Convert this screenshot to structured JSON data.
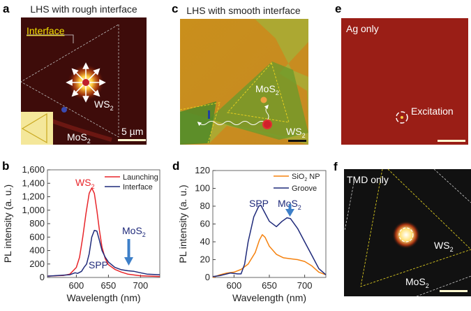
{
  "panels": {
    "a": {
      "label": "a",
      "title": "LHS with rough interface",
      "interface_label": "Interface",
      "ws2": "WS",
      "ws2_sub": "2",
      "mos2": "MoS",
      "mos2_sub": "2",
      "scalebar": "5 µm"
    },
    "c": {
      "label": "c",
      "title": "LHS with smooth interface",
      "mos2": "MoS",
      "mos2_sub": "2",
      "ws2": "WS",
      "ws2_sub": "2"
    },
    "e": {
      "label": "e",
      "title": "Ag only",
      "excitation": "Excitation"
    },
    "f": {
      "label": "f",
      "title": "TMD only",
      "ws2": "WS",
      "ws2_sub": "2",
      "mos2": "MoS",
      "mos2_sub": "2"
    },
    "b": {
      "label": "b",
      "ann_ws2": "WS",
      "ann_ws2_sub": "2",
      "ann_spp": "SPP",
      "ann_mos2": "MoS",
      "ann_mos2_sub": "2"
    },
    "d": {
      "label": "d",
      "ann_spp": "SPP",
      "ann_mos2": "MoS",
      "ann_mos2_sub": "2",
      "legend_sio2": "SiO",
      "legend_sio2_sub": "2",
      "legend_sio2_rest": " NP"
    }
  },
  "colors": {
    "red": "#e8252a",
    "navy": "#1f2a7a",
    "orange": "#f5820f",
    "arrow": "#3d7fc8"
  },
  "chart_data": [
    {
      "type": "line",
      "panel": "b",
      "xlabel": "Wavelength (nm)",
      "ylabel": "PL intensity (a. u.)",
      "xlim": [
        555,
        730
      ],
      "ylim": [
        0,
        1600
      ],
      "xticks": [
        600,
        650,
        700
      ],
      "yticks": [
        0,
        200,
        400,
        600,
        800,
        1000,
        1200,
        1400,
        1600
      ],
      "ytick_labels": [
        "0",
        "200",
        "400",
        "600",
        "800",
        "1,000",
        "1,200",
        "1,400",
        "1,600"
      ],
      "legend": "top-right",
      "series": [
        {
          "name": "Launching",
          "color": "#e8252a",
          "x": [
            555,
            580,
            590,
            600,
            605,
            610,
            615,
            620,
            624,
            628,
            632,
            636,
            640,
            645,
            650,
            660,
            670,
            680,
            700,
            730
          ],
          "y": [
            20,
            30,
            50,
            150,
            300,
            600,
            950,
            1250,
            1330,
            1250,
            1000,
            700,
            450,
            280,
            190,
            120,
            80,
            50,
            25,
            15
          ]
        },
        {
          "name": "Interface",
          "color": "#1f2a7a",
          "x": [
            555,
            590,
            598,
            602,
            608,
            612,
            616,
            620,
            624,
            628,
            632,
            636,
            640,
            645,
            650,
            660,
            670,
            680,
            690,
            700,
            710,
            730
          ],
          "y": [
            20,
            40,
            70,
            60,
            90,
            150,
            200,
            350,
            600,
            700,
            690,
            550,
            400,
            300,
            230,
            150,
            115,
            100,
            90,
            70,
            50,
            40
          ]
        }
      ]
    },
    {
      "type": "line",
      "panel": "d",
      "xlabel": "Wavelength (nm)",
      "ylabel": "PL intensity (a. u.)",
      "xlim": [
        570,
        730
      ],
      "ylim": [
        0,
        120
      ],
      "xticks": [
        600,
        650,
        700
      ],
      "yticks": [
        0,
        20,
        40,
        60,
        80,
        100,
        120
      ],
      "ytick_labels": [
        "0",
        "20",
        "40",
        "60",
        "80",
        "100",
        "120"
      ],
      "legend": "top-right",
      "series": [
        {
          "name": "SiO2 NP",
          "color": "#f5820f",
          "x": [
            570,
            580,
            590,
            600,
            610,
            620,
            630,
            636,
            640,
            644,
            650,
            660,
            670,
            680,
            690,
            700,
            710,
            720,
            730
          ],
          "y": [
            0,
            3,
            5,
            6,
            9,
            15,
            28,
            42,
            48,
            45,
            35,
            26,
            22,
            21,
            20,
            18,
            13,
            6,
            3
          ]
        },
        {
          "name": "Groove",
          "color": "#1f2a7a",
          "x": [
            570,
            580,
            595,
            605,
            610,
            615,
            620,
            628,
            635,
            638,
            642,
            650,
            660,
            668,
            675,
            680,
            690,
            700,
            710,
            720,
            730
          ],
          "y": [
            1,
            2,
            5,
            4,
            4,
            15,
            40,
            68,
            80,
            81,
            75,
            63,
            57,
            63,
            67,
            66,
            55,
            40,
            25,
            10,
            3
          ]
        }
      ]
    }
  ]
}
